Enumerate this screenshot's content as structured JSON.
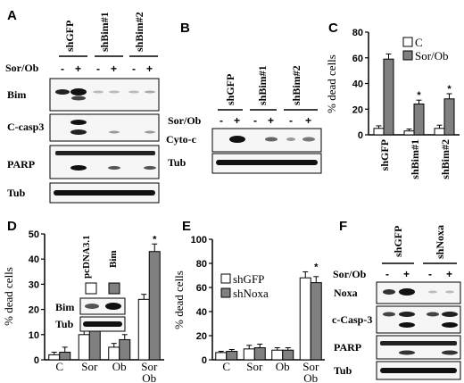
{
  "panels": {
    "A": {
      "label": "A",
      "samples": [
        "shGFP",
        "shBim#1",
        "shBim#2"
      ],
      "treatment": "Sor/Ob",
      "signs": [
        "-",
        "+",
        "-",
        "+",
        "-",
        "+"
      ],
      "rows": [
        "Bim",
        "C-casp3",
        "PARP",
        "Tub"
      ]
    },
    "B": {
      "label": "B",
      "samples": [
        "shGFP",
        "shBim#1",
        "shBim#2"
      ],
      "treatment": "Sor/Ob",
      "signs": [
        "-",
        "+",
        "-",
        "+",
        "-",
        "+"
      ],
      "rows": [
        "Cyto-c",
        "Tub"
      ]
    },
    "C": {
      "label": "C"
    },
    "D": {
      "label": "D",
      "inset_labels": [
        "pcDNA3.1",
        "Bim"
      ],
      "inset_rows": [
        "Bim",
        "Tub"
      ]
    },
    "E": {
      "label": "E"
    },
    "F": {
      "label": "F",
      "samples": [
        "shGFP",
        "shNoxa"
      ],
      "treatment": "Sor/Ob",
      "signs": [
        "-",
        "+",
        "-",
        "+"
      ],
      "rows": [
        "Noxa",
        "c-Casp-3",
        "PARP",
        "Tub"
      ]
    }
  },
  "colors": {
    "white_bar": "#ffffff",
    "gray_bar": "#808080",
    "axis": "#000000"
  },
  "chart_data": [
    {
      "panel": "C",
      "type": "bar",
      "categories": [
        "shGFP",
        "shBim#1",
        "shBim#2"
      ],
      "series": [
        {
          "name": "C",
          "values": [
            5,
            3,
            5
          ],
          "errors": [
            2,
            1.5,
            2.5
          ],
          "color": "#ffffff"
        },
        {
          "name": "Sor/Ob",
          "values": [
            59,
            24,
            28
          ],
          "errors": [
            4,
            3,
            4
          ],
          "color": "#808080"
        }
      ],
      "significance": [
        "",
        "*",
        "*"
      ],
      "ylabel": "% dead cells",
      "yticks": [
        0,
        20,
        40,
        60,
        80
      ],
      "ylim": [
        0,
        80
      ],
      "legend": "top-right"
    },
    {
      "panel": "D",
      "type": "bar",
      "categories": [
        "C",
        "Sor",
        "Ob",
        "Sor\nOb"
      ],
      "series": [
        {
          "name": "pcDNA3.1",
          "values": [
            2,
            10,
            5,
            24
          ],
          "errors": [
            1,
            2,
            1.5,
            2
          ],
          "color": "#ffffff"
        },
        {
          "name": "Bim",
          "values": [
            3,
            12,
            8,
            43
          ],
          "errors": [
            2,
            2,
            2,
            3
          ],
          "color": "#808080"
        }
      ],
      "significance": [
        "",
        "",
        "",
        "*"
      ],
      "ylabel": "% dead cells",
      "yticks": [
        0,
        10,
        20,
        30,
        40,
        50
      ],
      "ylim": [
        0,
        50
      ]
    },
    {
      "panel": "E",
      "type": "bar",
      "categories": [
        "C",
        "Sor",
        "Ob",
        "Sor\nOb"
      ],
      "series": [
        {
          "name": "shGFP",
          "values": [
            6,
            9,
            8,
            68
          ],
          "errors": [
            1,
            3,
            2,
            5
          ],
          "color": "#ffffff"
        },
        {
          "name": "shNoxa",
          "values": [
            7,
            10,
            8,
            64
          ],
          "errors": [
            1.5,
            3,
            2,
            5
          ],
          "color": "#808080"
        }
      ],
      "significance": [
        "",
        "",
        "",
        "*"
      ],
      "ylabel": "% dead cells",
      "yticks": [
        0,
        20,
        40,
        60,
        80,
        100
      ],
      "ylim": [
        0,
        100
      ],
      "legend": "middle-left"
    }
  ]
}
